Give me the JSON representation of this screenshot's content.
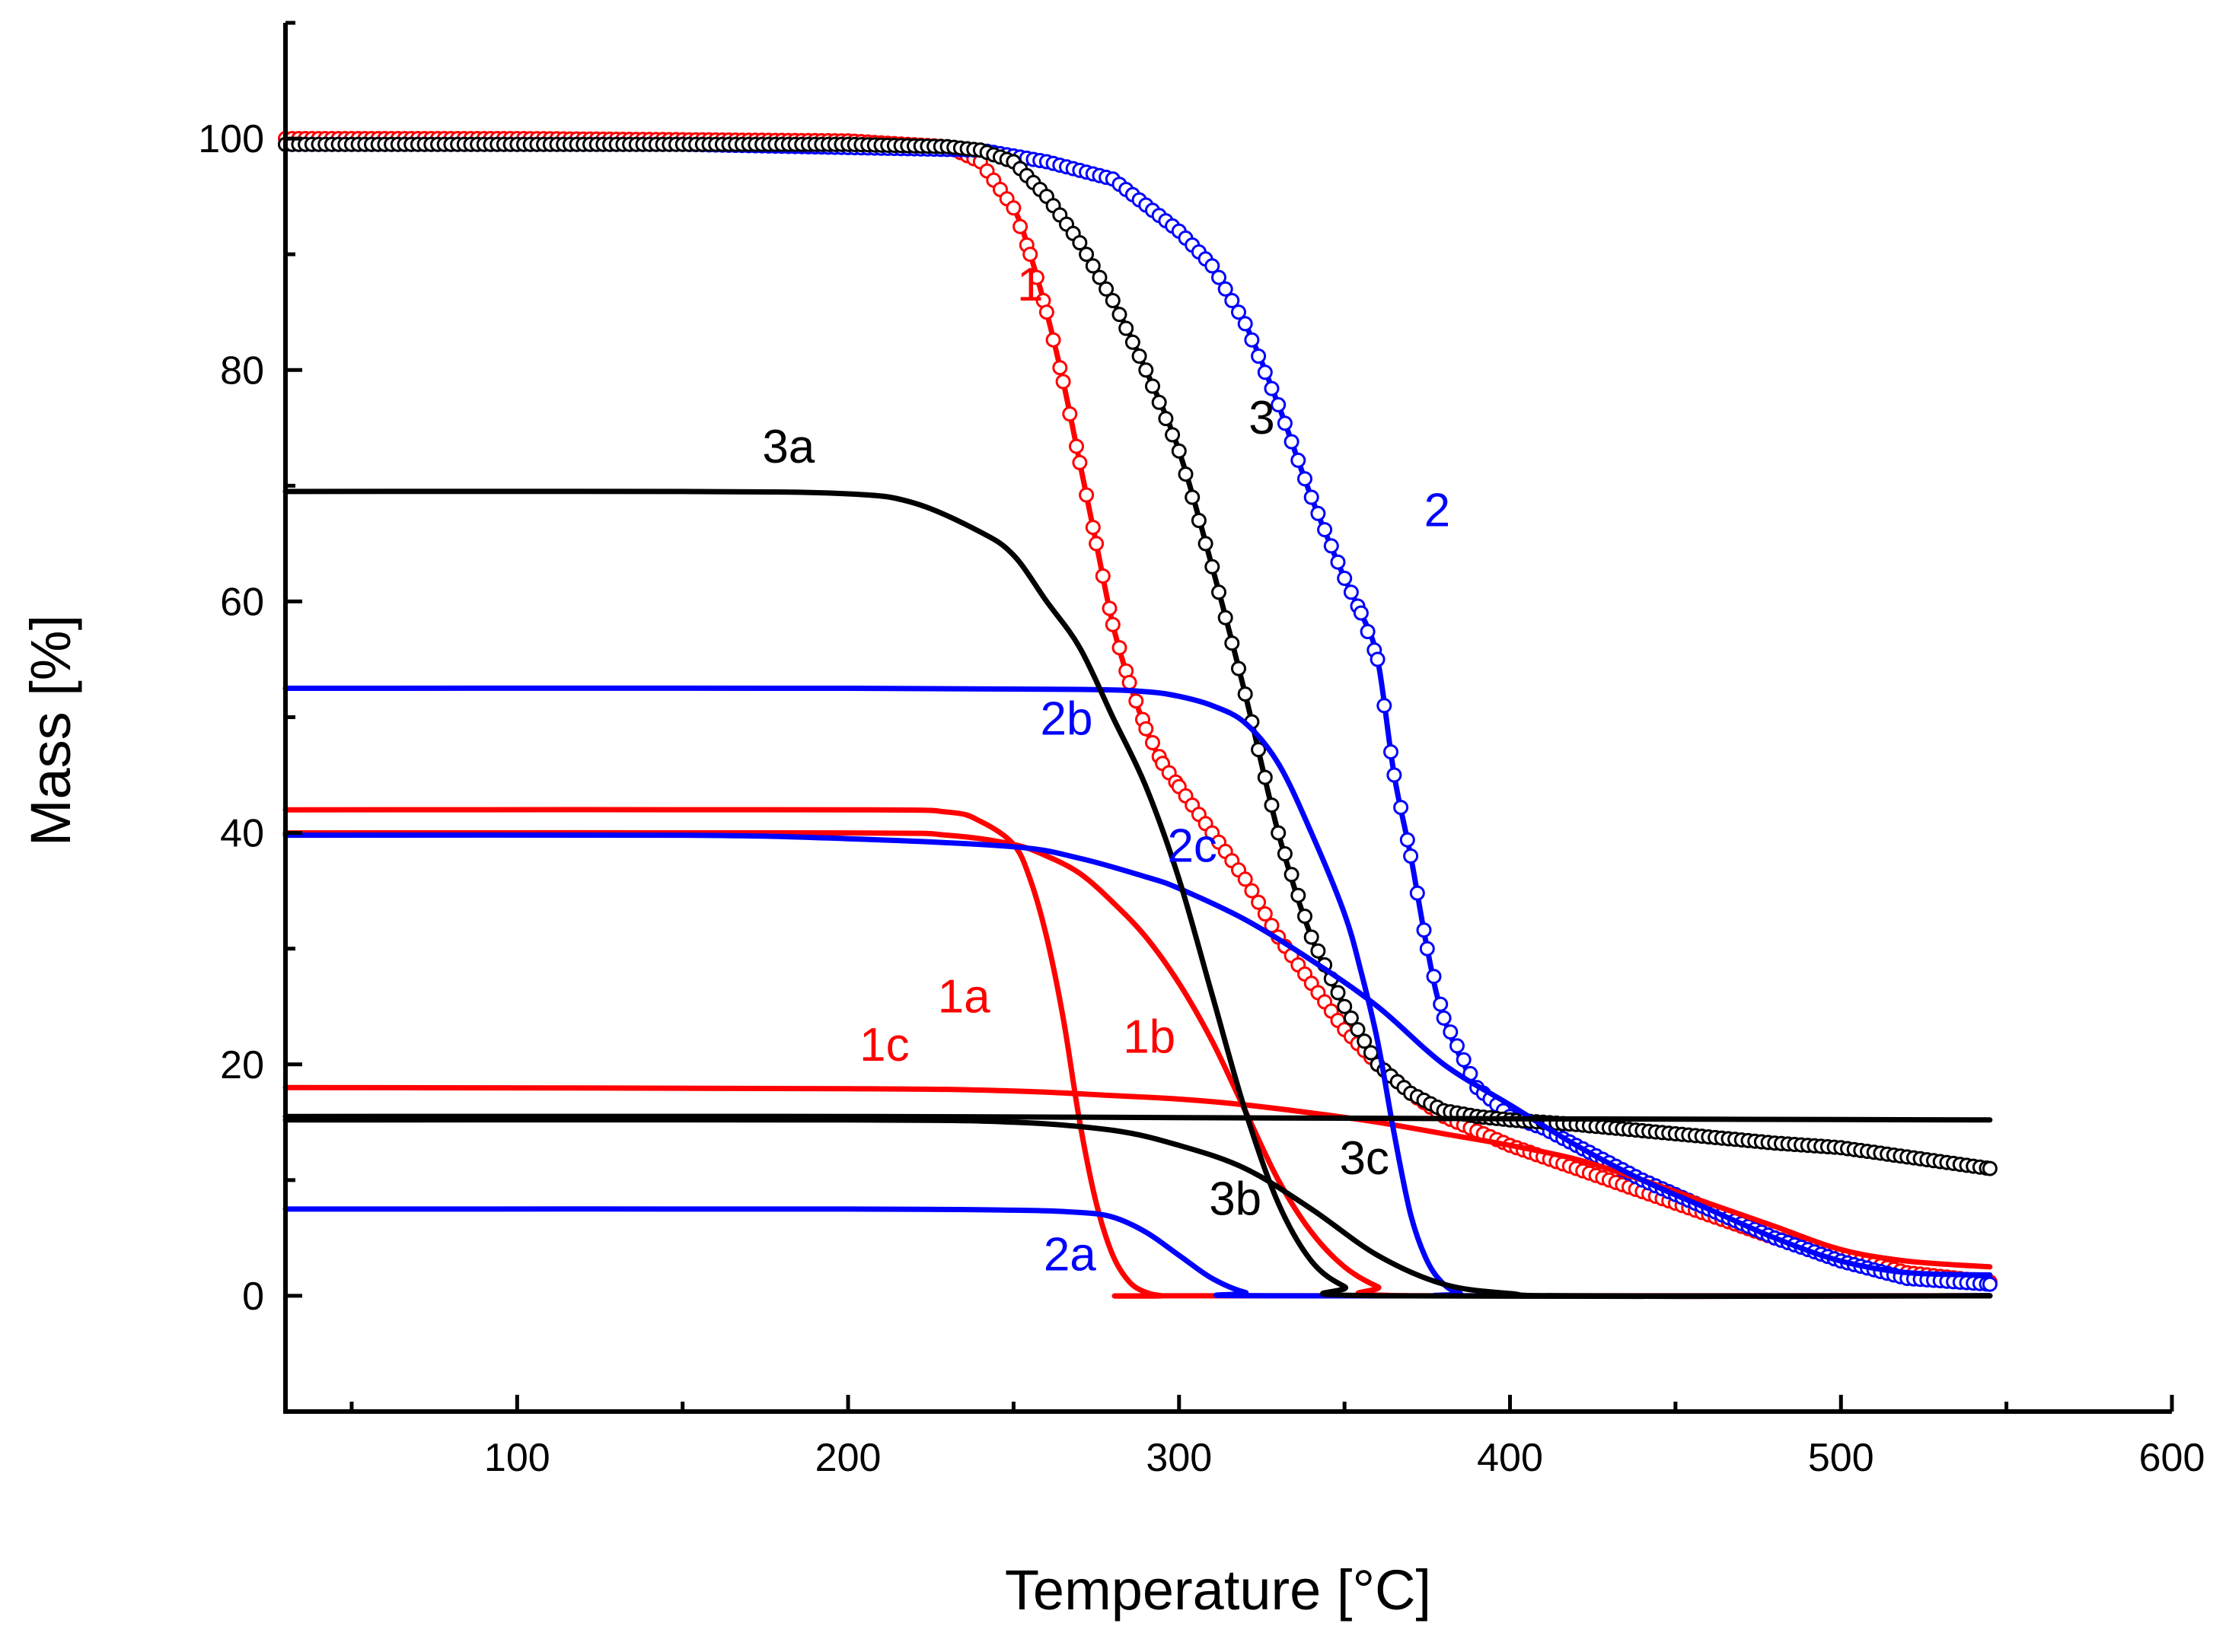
{
  "chart_data": {
    "type": "line",
    "title": "",
    "xlabel": "Temperature [°C]",
    "ylabel": "Mass [%]",
    "xlim": [
      30,
      600
    ],
    "ylim": [
      -10,
      110
    ],
    "xticks": [
      100,
      200,
      300,
      400,
      500,
      600
    ],
    "xtick_labels": [
      "100",
      "200",
      "300",
      "400",
      "500",
      "600"
    ],
    "yticks": [
      0,
      20,
      40,
      60,
      80,
      100
    ],
    "ytick_labels": [
      "0",
      "20",
      "40",
      "60",
      "80",
      "100"
    ],
    "grid": false,
    "colors": {
      "red": "#ff0000",
      "blue": "#0000ff",
      "black": "#000000"
    },
    "series": [
      {
        "name": "1",
        "color": "#ff0000",
        "style": "line+circle",
        "x": [
          30,
          100,
          200,
          230,
          240,
          250,
          255,
          260,
          265,
          270,
          275,
          280,
          285,
          290,
          295,
          300,
          310,
          320,
          330,
          340,
          350,
          360,
          370,
          380,
          400,
          420,
          440,
          460,
          480,
          500,
          520,
          545
        ],
        "y": [
          100,
          100,
          99.8,
          99.3,
          98,
          94,
          90,
          85,
          79,
          72,
          65,
          58,
          53,
          49,
          46,
          44,
          40,
          36,
          31,
          27,
          23,
          20,
          17.5,
          15.5,
          13,
          11,
          9,
          7,
          5,
          3.5,
          2,
          1.2
        ]
      },
      {
        "name": "2",
        "color": "#0000ff",
        "style": "line+circle",
        "x": [
          30,
          150,
          240,
          260,
          280,
          300,
          310,
          320,
          330,
          340,
          350,
          355,
          360,
          365,
          370,
          375,
          380,
          390,
          400,
          410,
          420,
          440,
          460,
          480,
          500,
          520,
          545
        ],
        "y": [
          99.5,
          99.5,
          99,
          98,
          96.5,
          92,
          89,
          84,
          77,
          69,
          62,
          59,
          55,
          45,
          38,
          30,
          24,
          18,
          15.5,
          14.5,
          13,
          10,
          7.5,
          5,
          3,
          1.5,
          1
        ]
      },
      {
        "name": "3",
        "color": "#000000",
        "style": "line+circle",
        "x": [
          30,
          150,
          200,
          230,
          240,
          250,
          260,
          270,
          280,
          290,
          300,
          310,
          320,
          330,
          340,
          350,
          360,
          370,
          380,
          390,
          400,
          420,
          450,
          480,
          500,
          520,
          545
        ],
        "y": [
          99.5,
          99.5,
          99.5,
          99.3,
          99,
          98,
          95,
          91,
          86,
          80,
          73,
          63,
          52,
          40,
          31,
          25,
          20,
          17.5,
          16,
          15.5,
          15.2,
          14.8,
          14,
          13.2,
          12.8,
          12,
          11
        ]
      },
      {
        "name": "1a",
        "color": "#ff0000",
        "style": "line",
        "x": [
          30,
          200,
          230,
          240,
          250,
          255,
          260,
          265,
          270,
          275,
          280,
          285,
          290,
          295,
          300,
          545
        ],
        "y": [
          42,
          42,
          41.8,
          41,
          39,
          36,
          31,
          24,
          15,
          8,
          3.5,
          1.2,
          0.3,
          0,
          0,
          0
        ]
      },
      {
        "name": "1b",
        "color": "#ff0000",
        "style": "line",
        "x": [
          30,
          200,
          230,
          250,
          260,
          270,
          280,
          290,
          300,
          310,
          320,
          330,
          340,
          350,
          360,
          370,
          545
        ],
        "y": [
          40,
          40,
          39.8,
          39,
          38,
          36.5,
          34,
          31,
          27,
          22,
          16,
          10,
          5.5,
          2.5,
          0.8,
          0,
          0
        ]
      },
      {
        "name": "1c",
        "color": "#ff0000",
        "style": "line",
        "x": [
          30,
          200,
          250,
          280,
          300,
          320,
          340,
          360,
          380,
          400,
          420,
          440,
          460,
          480,
          500,
          520,
          545
        ],
        "y": [
          18,
          17.9,
          17.7,
          17.3,
          17,
          16.5,
          15.8,
          15,
          14,
          13,
          11.8,
          10,
          8,
          6,
          4,
          3,
          2.5
        ]
      },
      {
        "name": "2a",
        "color": "#0000ff",
        "style": "line",
        "x": [
          30,
          200,
          250,
          270,
          280,
          290,
          300,
          310,
          320,
          330,
          545
        ],
        "y": [
          7.5,
          7.5,
          7.4,
          7.2,
          6.8,
          5.5,
          3.5,
          1.5,
          0.3,
          0,
          0
        ]
      },
      {
        "name": "2b",
        "color": "#0000ff",
        "style": "line",
        "x": [
          30,
          200,
          270,
          290,
          300,
          310,
          320,
          330,
          340,
          350,
          355,
          360,
          365,
          370,
          375,
          380,
          385,
          390,
          545
        ],
        "y": [
          52.5,
          52.5,
          52.4,
          52.2,
          51.8,
          51,
          49.5,
          46,
          40,
          33,
          28,
          22,
          14,
          7,
          3,
          1,
          0.2,
          0,
          0
        ]
      },
      {
        "name": "2c",
        "color": "#0000ff",
        "style": "line",
        "x": [
          30,
          150,
          200,
          250,
          270,
          290,
          300,
          320,
          340,
          360,
          380,
          400,
          420,
          440,
          460,
          480,
          500,
          520,
          545
        ],
        "y": [
          39.8,
          39.8,
          39.5,
          38.8,
          37.8,
          36.2,
          35.2,
          32.5,
          29,
          25,
          20,
          16.5,
          13,
          10,
          7.5,
          5,
          3,
          2,
          1.8
        ]
      },
      {
        "name": "3a",
        "color": "#000000",
        "style": "line",
        "x": [
          30,
          150,
          200,
          220,
          240,
          250,
          260,
          270,
          280,
          290,
          300,
          310,
          320,
          330,
          340,
          350,
          360,
          545
        ],
        "y": [
          69.5,
          69.5,
          69.3,
          68.5,
          66,
          64,
          60,
          56,
          50,
          44,
          36,
          26,
          16,
          8,
          3,
          0.8,
          0,
          0
        ]
      },
      {
        "name": "3b",
        "color": "#000000",
        "style": "line",
        "x": [
          30,
          200,
          250,
          280,
          300,
          320,
          340,
          360,
          380,
          400,
          420,
          545
        ],
        "y": [
          15.2,
          15.2,
          15,
          14.3,
          13,
          11,
          7.5,
          3.5,
          1,
          0.2,
          0,
          0
        ]
      },
      {
        "name": "3c",
        "color": "#000000",
        "style": "line",
        "x": [
          30,
          200,
          300,
          400,
          545
        ],
        "y": [
          15.5,
          15.5,
          15.4,
          15.3,
          15.2
        ]
      }
    ],
    "annotations": [
      {
        "text": "1",
        "color": "#ff0000",
        "x": 255,
        "y": 86
      },
      {
        "text": "2",
        "color": "#0000ff",
        "x": 378,
        "y": 66.5
      },
      {
        "text": "3",
        "color": "#000000",
        "x": 325,
        "y": 74.5
      },
      {
        "text": "1a",
        "color": "#ff0000",
        "x": 235,
        "y": 24.5
      },
      {
        "text": "1b",
        "color": "#ff0000",
        "x": 291,
        "y": 21
      },
      {
        "text": "1c",
        "color": "#ff0000",
        "x": 211,
        "y": 20.3
      },
      {
        "text": "2a",
        "color": "#0000ff",
        "x": 267,
        "y": 2.2
      },
      {
        "text": "2b",
        "color": "#0000ff",
        "x": 266,
        "y": 48.5
      },
      {
        "text": "2c",
        "color": "#0000ff",
        "x": 304,
        "y": 37.5
      },
      {
        "text": "3a",
        "color": "#000000",
        "x": 182,
        "y": 72
      },
      {
        "text": "3b",
        "color": "#000000",
        "x": 317,
        "y": 7
      },
      {
        "text": "3c",
        "color": "#000000",
        "x": 356,
        "y": 10.5
      }
    ]
  }
}
